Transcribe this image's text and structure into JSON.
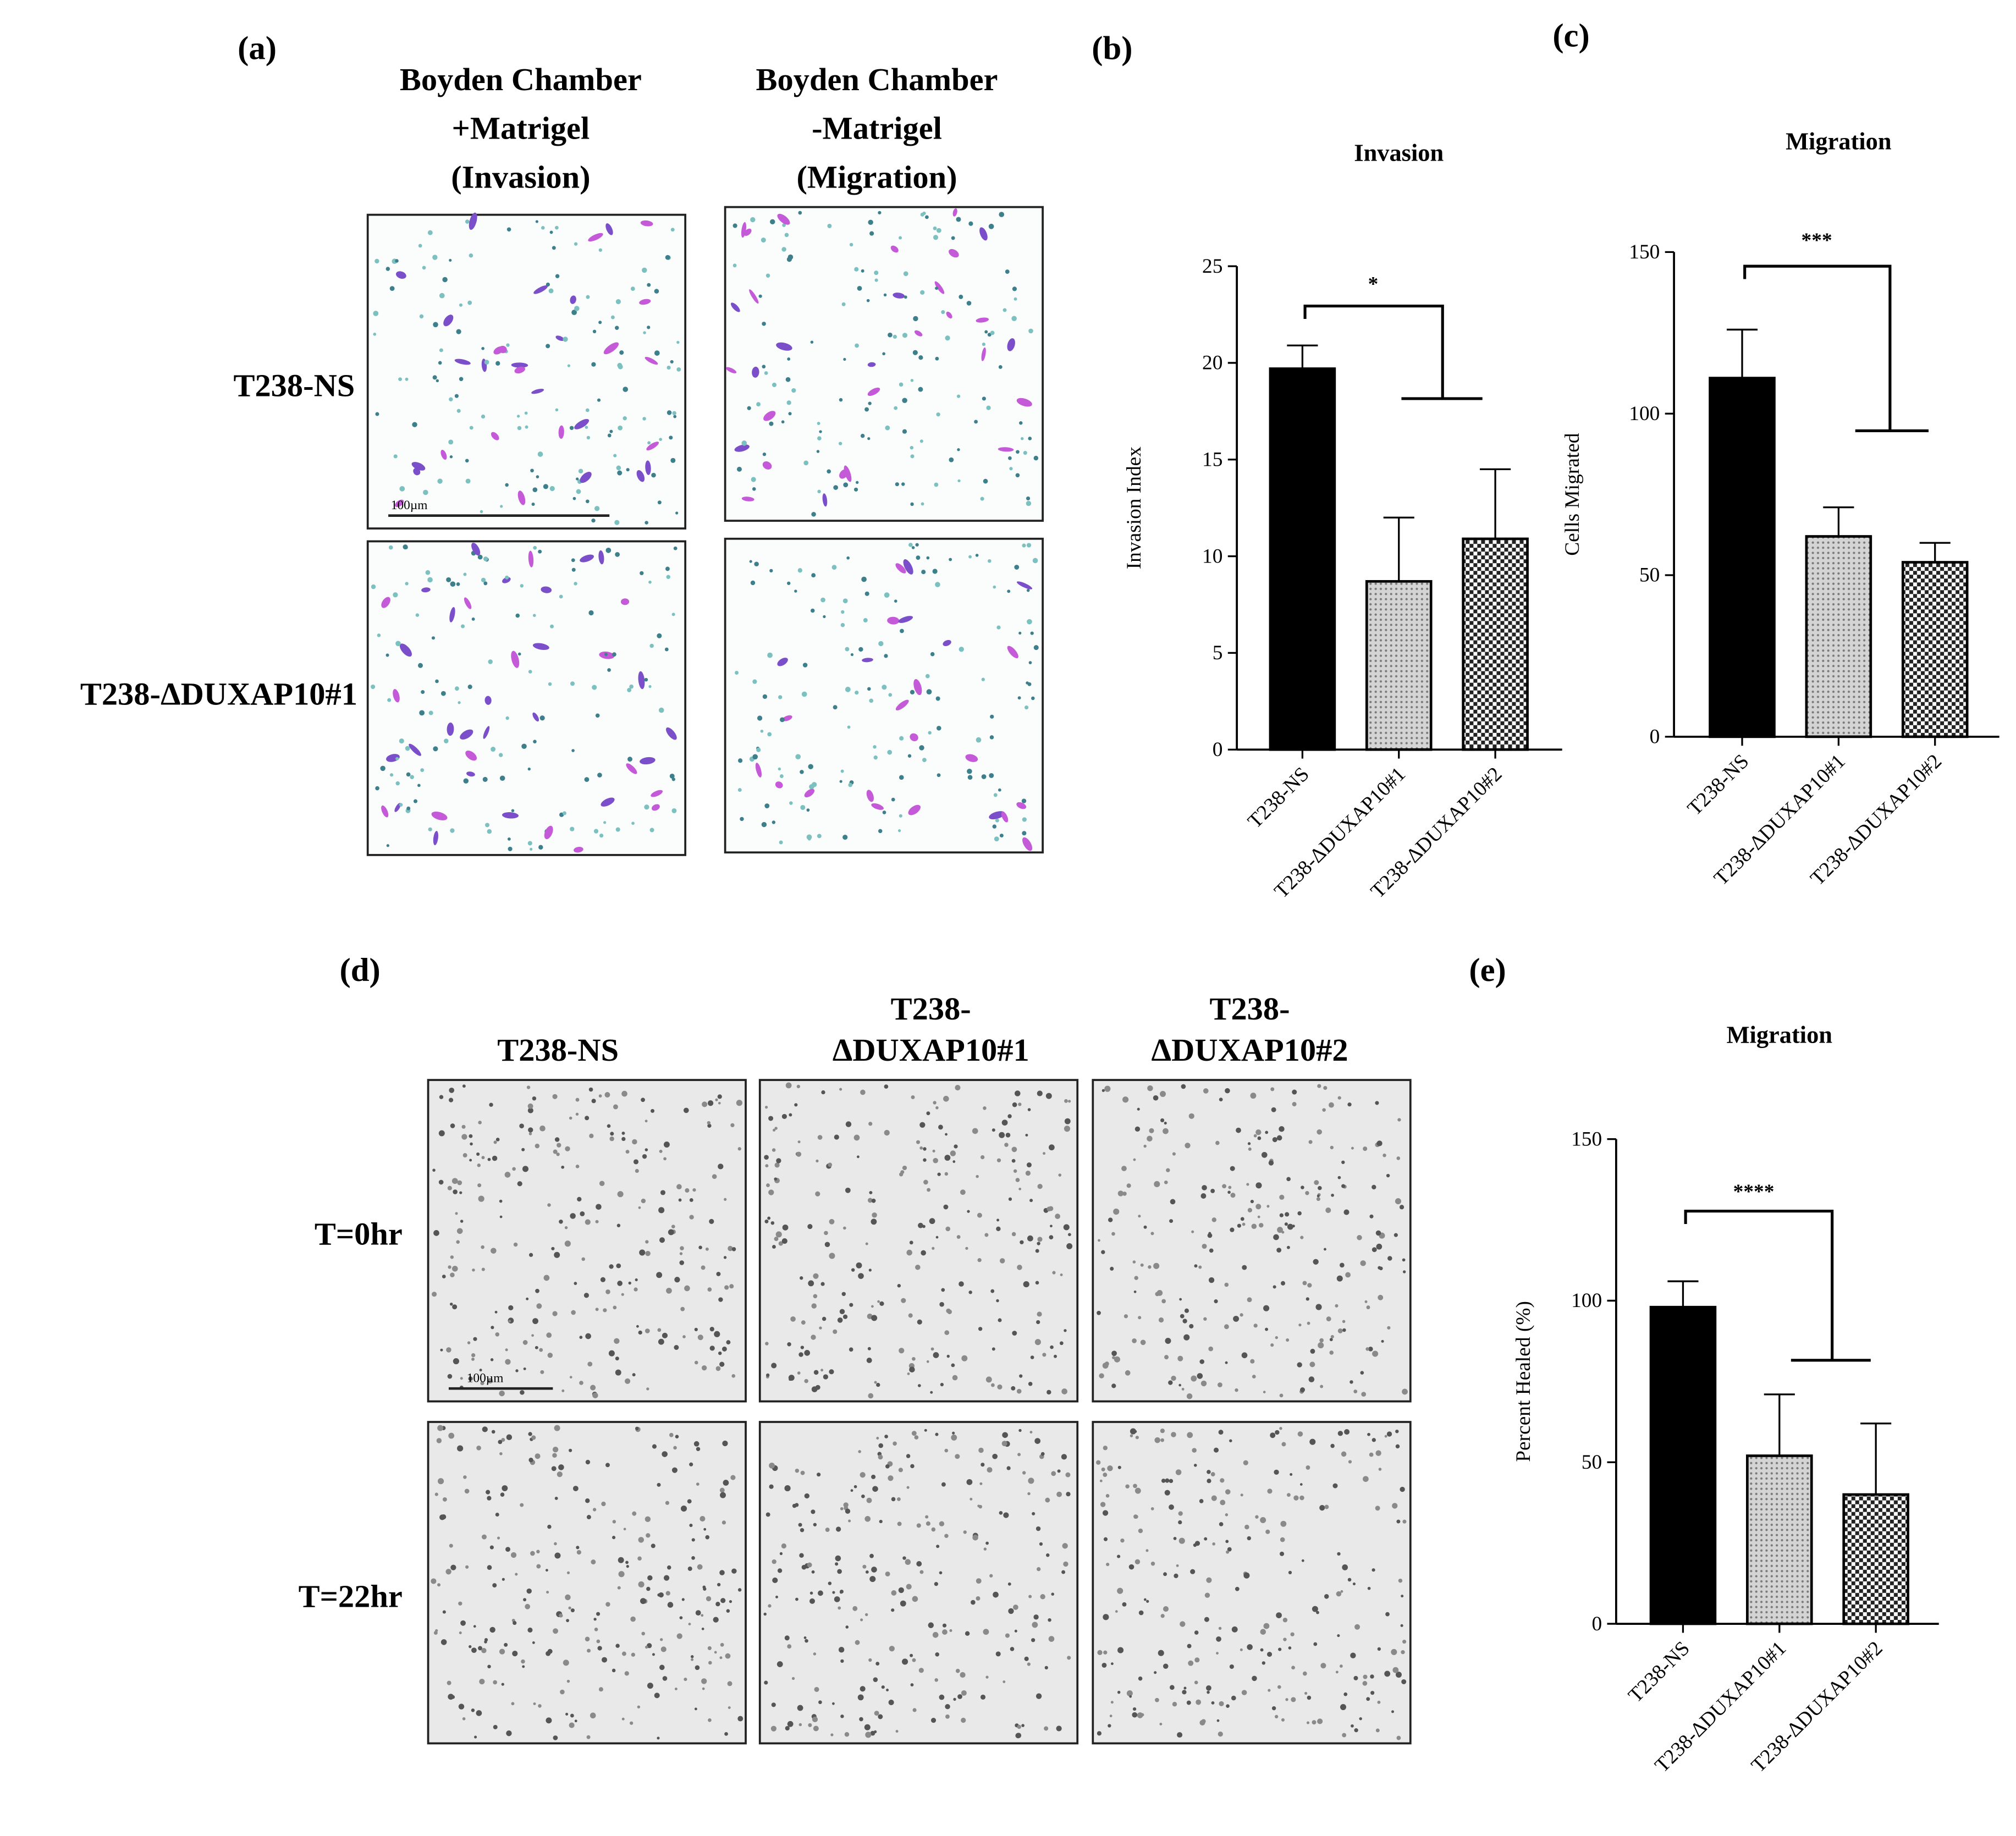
{
  "panel_a": {
    "label": "(a)",
    "columns": [
      [
        "Boyden Chamber",
        "+Matrigel",
        "(Invasion)"
      ],
      [
        "Boyden Chamber",
        "-Matrigel",
        "(Migration)"
      ]
    ],
    "rows": [
      "T238-NS",
      "T238-ΔDUXAP10#1"
    ],
    "scale_bar": "100µm"
  },
  "panel_d": {
    "label": "(d)",
    "columns": [
      [
        "T238-NS"
      ],
      [
        "T238-",
        "ΔDUXAP10#1"
      ],
      [
        "T238-",
        "ΔDUXAP10#2"
      ]
    ],
    "rows": [
      "T=0hr",
      "T=22hr"
    ],
    "scale_bar": "100µm"
  },
  "chart_data": [
    {
      "type": "bar",
      "panel_label": "(b)",
      "title": "Invasion",
      "y_label": "Invasion Index",
      "categories": [
        "T238-NS",
        "T238-ΔDUXAP10#1",
        "T238-ΔDUXAP10#2"
      ],
      "values": [
        19.7,
        8.7,
        10.9
      ],
      "errors": [
        1.2,
        3.3,
        3.6
      ],
      "patterns": [
        "solid",
        "dots",
        "checker"
      ],
      "ylim": [
        0,
        25
      ],
      "yticks": [
        0,
        5,
        10,
        15,
        20,
        25
      ],
      "significance": "*"
    },
    {
      "type": "bar",
      "panel_label": "(c)",
      "title": "Migration",
      "y_label": "Cells Migrated",
      "categories": [
        "T238-NS",
        "T238-ΔDUXAP10#1",
        "T238-ΔDUXAP10#2"
      ],
      "values": [
        111,
        62,
        54
      ],
      "errors": [
        15,
        9,
        6
      ],
      "patterns": [
        "solid",
        "dots",
        "checker"
      ],
      "ylim": [
        0,
        150
      ],
      "yticks": [
        0,
        50,
        100,
        150
      ],
      "significance": "***"
    },
    {
      "type": "bar",
      "panel_label": "(e)",
      "title": "Migration",
      "y_label": "Percent Healed (%)",
      "categories": [
        "T238-NS",
        "T238-ΔDUXAP10#1",
        "T238-ΔDUXAP10#2"
      ],
      "values": [
        98,
        52,
        40
      ],
      "errors": [
        8,
        19,
        22
      ],
      "patterns": [
        "solid",
        "dots",
        "checker"
      ],
      "ylim": [
        0,
        150
      ],
      "yticks": [
        0,
        50,
        100,
        150
      ],
      "significance": "****"
    }
  ]
}
